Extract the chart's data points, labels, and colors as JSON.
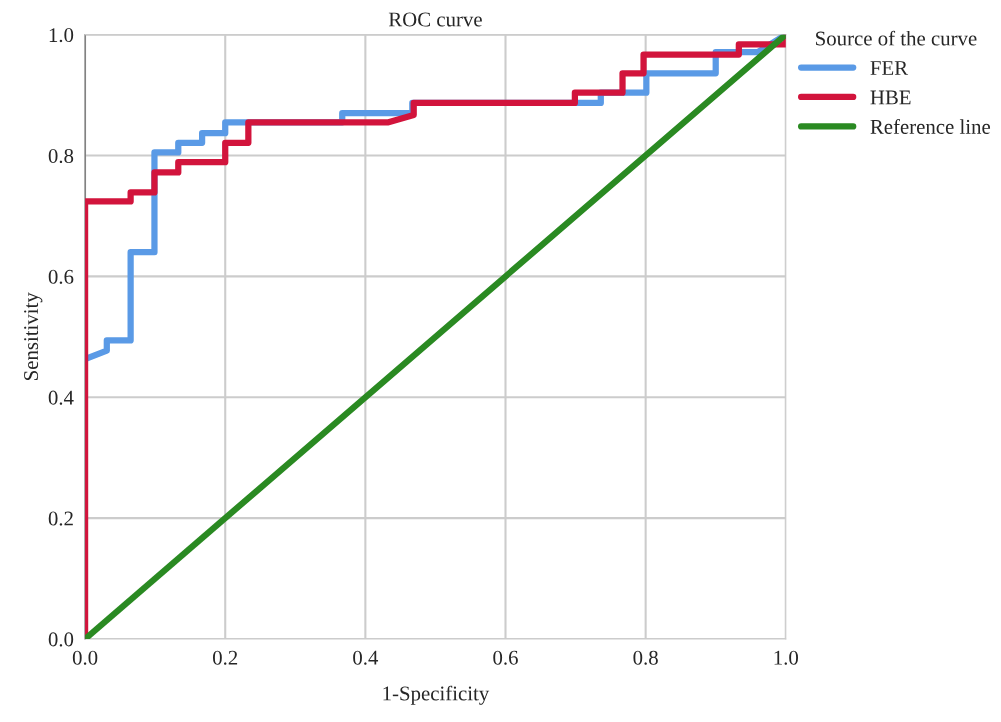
{
  "chart_data": {
    "type": "line",
    "title": "ROC curve",
    "xlabel": "1-Specificity",
    "ylabel": "Sensitivity",
    "legend_title": "Source of the curve",
    "legend": "top right",
    "grid": true,
    "line_style": "solid",
    "marker": "none",
    "xlim": [
      0,
      1
    ],
    "ylim": [
      0,
      1
    ],
    "xticks": [
      {
        "value": 0,
        "label": "0.0"
      },
      {
        "value": 0.2,
        "label": "0.2"
      },
      {
        "value": 0.4,
        "label": "0.4"
      },
      {
        "value": 0.6,
        "label": "0.6"
      },
      {
        "value": 0.8,
        "label": "0.8"
      },
      {
        "value": 1,
        "label": "1.0"
      }
    ],
    "yticks": [
      {
        "value": 0,
        "label": "0.0"
      },
      {
        "value": 0.2,
        "label": "0.2"
      },
      {
        "value": 0.4,
        "label": "0.4"
      },
      {
        "value": 0.6,
        "label": "0.6"
      },
      {
        "value": 0.8,
        "label": "0.8"
      },
      {
        "value": 1,
        "label": "1.0"
      }
    ],
    "series": [
      {
        "name": "FER",
        "color": "#5a9ae6",
        "x": [
          0,
          0.031,
          0.031,
          0.065,
          0.065,
          0.099,
          0.099,
          0.133,
          0.133,
          0.167,
          0.167,
          0.2,
          0.2,
          0.367,
          0.367,
          0.467,
          0.467,
          0.736,
          0.736,
          0.801,
          0.801,
          0.9,
          0.9,
          0.96,
          1
        ],
        "values": [
          0.463,
          0.477,
          0.494,
          0.494,
          0.64,
          0.64,
          0.805,
          0.805,
          0.821,
          0.821,
          0.837,
          0.837,
          0.855,
          0.855,
          0.87,
          0.87,
          0.887,
          0.887,
          0.904,
          0.904,
          0.936,
          0.936,
          0.971,
          0.971,
          1
        ]
      },
      {
        "name": "HBE",
        "color": "#d2143c",
        "x": [
          0,
          0,
          0.065,
          0.065,
          0.099,
          0.099,
          0.133,
          0.133,
          0.2,
          0.2,
          0.233,
          0.233,
          0.433,
          0.469,
          0.469,
          0.699,
          0.699,
          0.767,
          0.767,
          0.797,
          0.797,
          0.933,
          0.933,
          1,
          1
        ],
        "values": [
          0,
          0.724,
          0.724,
          0.739,
          0.739,
          0.772,
          0.772,
          0.789,
          0.789,
          0.821,
          0.821,
          0.855,
          0.855,
          0.867,
          0.887,
          0.887,
          0.904,
          0.904,
          0.936,
          0.936,
          0.967,
          0.967,
          0.984,
          0.984,
          1
        ]
      },
      {
        "name": "Reference line",
        "color": "#2a8a22",
        "x": [
          0,
          1
        ],
        "values": [
          0,
          1
        ]
      }
    ]
  }
}
